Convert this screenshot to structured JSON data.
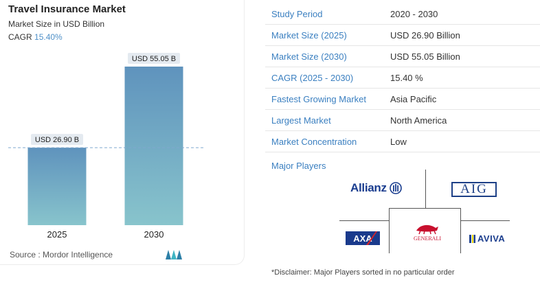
{
  "chart_data": {
    "type": "bar",
    "title": "Travel Insurance Market",
    "subtitle": "Market Size in USD Billion",
    "cagr_label": "CAGR",
    "cagr_value": "15.40%",
    "categories": [
      "2025",
      "2030"
    ],
    "values": [
      26.9,
      55.05
    ],
    "value_labels": [
      "USD 26.90 B",
      "USD 55.05 B"
    ],
    "ylim": [
      0,
      60
    ],
    "reference_line": 26.9,
    "grid": false,
    "colors": {
      "bar_top": "#5f93bd",
      "bar_bottom": "#88c4cc",
      "label_bg": "#e4eaf0",
      "ref_line": "#7fa9cf"
    }
  },
  "source": "Source :  Mordor Intelligence",
  "table": [
    {
      "key": "Study Period",
      "value": "2020 - 2030"
    },
    {
      "key": "Market Size (2025)",
      "value": "USD 26.90 Billion"
    },
    {
      "key": "Market Size (2030)",
      "value": "USD 55.05 Billion"
    },
    {
      "key": "CAGR (2025 - 2030)",
      "value": "15.40 %"
    },
    {
      "key": "Fastest Growing Market",
      "value": "Asia Pacific"
    },
    {
      "key": "Largest Market",
      "value": "North America"
    },
    {
      "key": "Market Concentration",
      "value": "Low"
    }
  ],
  "major_players_label": "Major Players",
  "players": {
    "allianz": "Allianz",
    "aig": "AIG",
    "axa": "AXA",
    "generali": "GENERALI",
    "aviva": "AVIVA"
  },
  "disclaimer": "*Disclaimer: Major Players sorted in no particular order"
}
